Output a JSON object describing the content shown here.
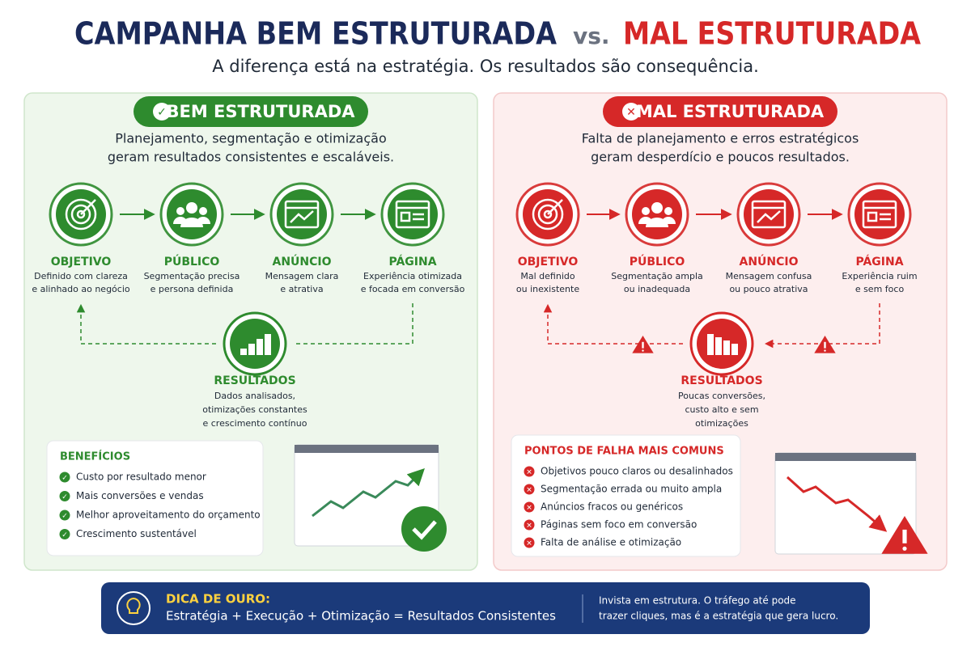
{
  "header": {
    "title_left": "CAMPANHA BEM ESTRUTURADA",
    "vs": "vs.",
    "title_right": "MAL ESTRUTURADA",
    "subtitle": "A diferença está na estratégia. Os resultados são consequência."
  },
  "good": {
    "badge": "BEM ESTRUTURADA",
    "intro": [
      "Planejamento, segmentação e otimização",
      "geram resultados consistentes e escaláveis."
    ],
    "steps": [
      {
        "label": "OBJETIVO",
        "desc": [
          "Definido com clareza",
          "e alinhado ao negócio"
        ]
      },
      {
        "label": "PÚBLICO",
        "desc": [
          "Segmentação precisa",
          "e persona definida"
        ]
      },
      {
        "label": "ANÚNCIO",
        "desc": [
          "Mensagem clara",
          "e atrativa"
        ]
      },
      {
        "label": "PÁGINA",
        "desc": [
          "Experiência otimizada",
          "e focada em conversão"
        ]
      }
    ],
    "result": {
      "label": "RESULTADOS",
      "desc": [
        "Dados analisados,",
        "otimizações constantes",
        "e crescimento contínuo"
      ]
    },
    "list": {
      "title": "BENEFÍCIOS",
      "items": [
        "Custo por resultado menor",
        "Mais conversões e vendas",
        "Melhor aproveitamento do orçamento",
        "Crescimento sustentável"
      ]
    }
  },
  "bad": {
    "badge": "MAL ESTRUTURADA",
    "intro": [
      "Falta de planejamento e erros estratégicos",
      "geram desperdício e poucos resultados."
    ],
    "steps": [
      {
        "label": "OBJETIVO",
        "desc": [
          "Mal definido",
          "ou inexistente"
        ]
      },
      {
        "label": "PÚBLICO",
        "desc": [
          "Segmentação ampla",
          "ou inadequada"
        ]
      },
      {
        "label": "ANÚNCIO",
        "desc": [
          "Mensagem confusa",
          "ou pouco atrativa"
        ]
      },
      {
        "label": "PÁGINA",
        "desc": [
          "Experiência ruim",
          "e sem foco"
        ]
      }
    ],
    "result": {
      "label": "RESULTADOS",
      "desc": [
        "Poucas conversões,",
        "custo alto e sem",
        "otimizações"
      ]
    },
    "list": {
      "title": "PONTOS DE FALHA MAIS COMUNS",
      "items": [
        "Objetivos pouco claros ou desalinhados",
        "Segmentação errada ou muito ampla",
        "Anúncios fracos ou genéricos",
        "Páginas sem foco em conversão",
        "Falta de análise e otimização"
      ]
    }
  },
  "tip": {
    "title": "DICA DE OURO:",
    "formula": "Estratégia + Execução + Otimização = Resultados Consistentes",
    "note": [
      "Invista em estrutura. O tráfego até pode",
      "trazer cliques, mas é a estratégia que gera lucro."
    ]
  }
}
